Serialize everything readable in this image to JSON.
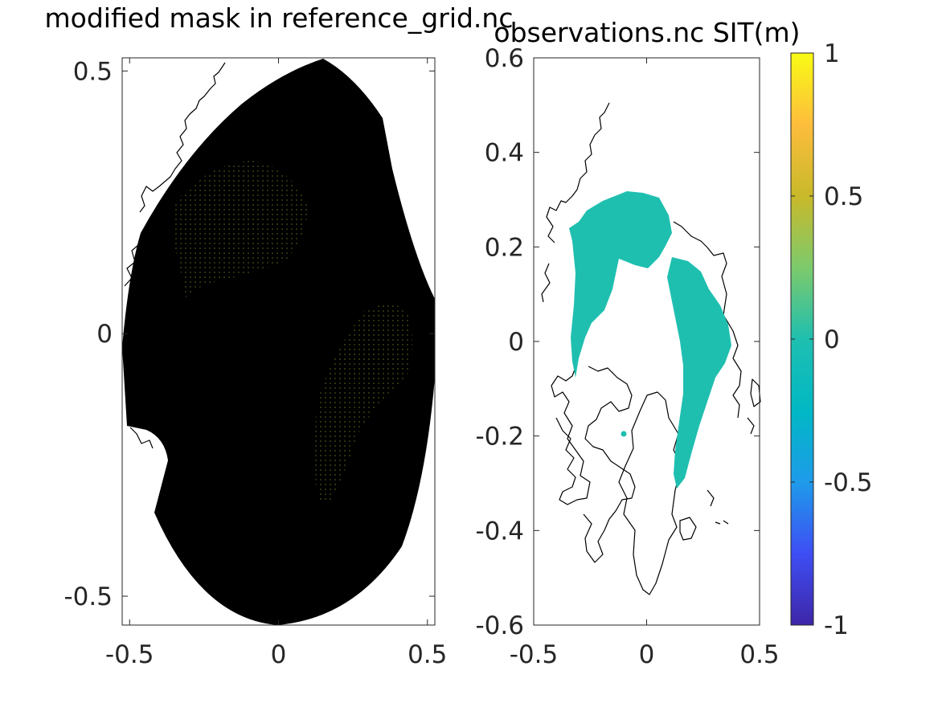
{
  "chart_data": [
    {
      "type": "heatmap",
      "title": "modified mask in reference_grid.nc",
      "xlabel": "",
      "ylabel": "",
      "xlim": [
        -0.525,
        0.525
      ],
      "ylim": [
        -0.555,
        0.525
      ],
      "x_ticks": [
        -0.5,
        0,
        0.5
      ],
      "x_tick_labels": [
        "-0.5",
        "0",
        "0.5"
      ],
      "y_ticks": [
        0.5,
        0,
        -0.5
      ],
      "y_tick_labels": [
        "0.5",
        "0",
        "-0.5"
      ],
      "grid": false,
      "colors": {
        "grid_cells": "#000000",
        "masked_dots": "#5a6e20"
      }
    },
    {
      "type": "heatmap",
      "title": "observations.nc SIT(m)",
      "xlabel": "",
      "ylabel": "",
      "xlim": [
        -0.5,
        0.5
      ],
      "ylim": [
        -0.6,
        0.6
      ],
      "x_ticks": [
        -0.5,
        0,
        0.5
      ],
      "x_tick_labels": [
        "-0.5",
        "0",
        "0.5"
      ],
      "y_ticks": [
        0.6,
        0.4,
        0.2,
        0,
        -0.2,
        -0.4,
        -0.6
      ],
      "y_tick_labels": [
        "0.6",
        "0.4",
        "0.2",
        "0",
        "-0.2",
        "-0.4",
        "-0.6"
      ],
      "grid": false,
      "field_value": 0,
      "colors": {
        "field": "#1fbfb0"
      },
      "colorbar": {
        "range": [
          -1,
          1
        ],
        "ticks": [
          1,
          0.5,
          0,
          -0.5,
          -1
        ],
        "tick_labels": [
          "1",
          "0.5",
          "0",
          "-0.5",
          "-1"
        ],
        "colormap": "parula",
        "stops": [
          "#3e26a8",
          "#3e4ef4",
          "#1e9bea",
          "#01b8c4",
          "#1fbfb0",
          "#7dca6c",
          "#c9b92a",
          "#fdbd3d",
          "#f9fb14"
        ]
      }
    }
  ]
}
